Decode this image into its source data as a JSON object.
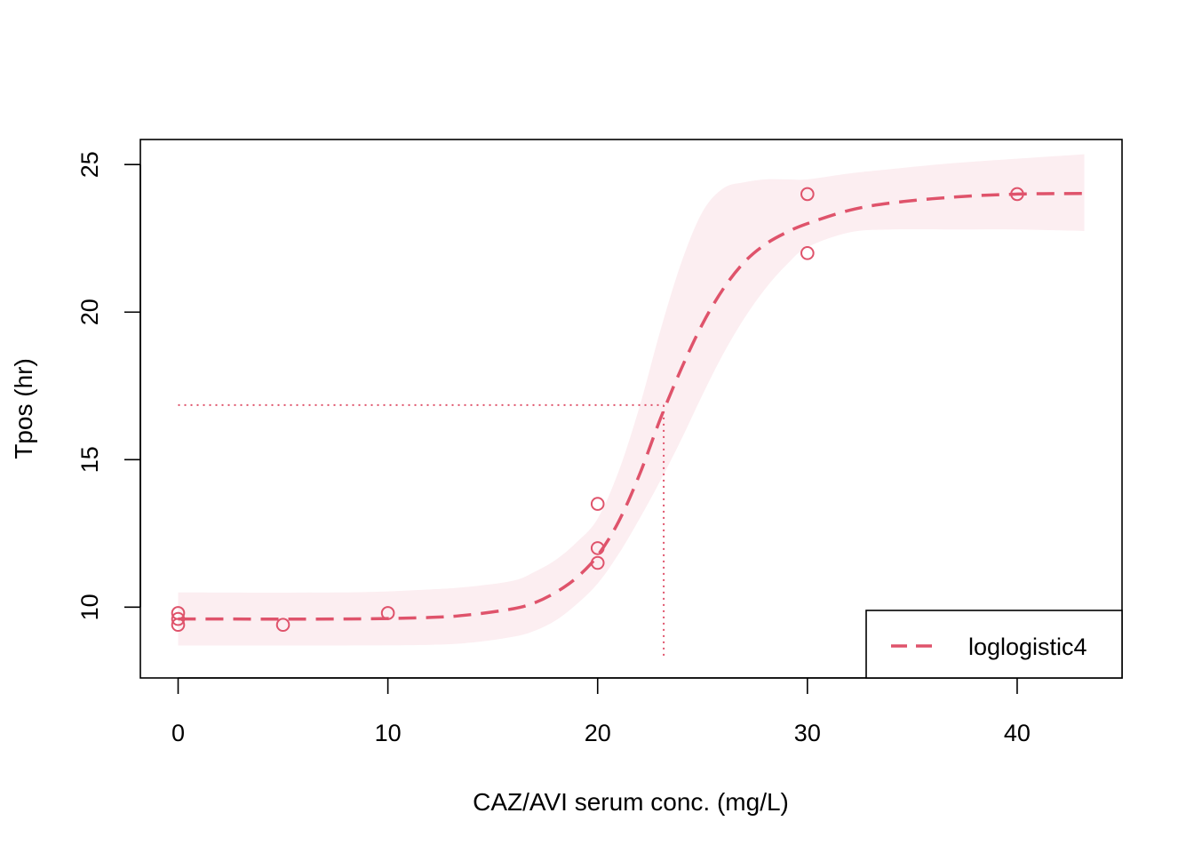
{
  "chart_data": {
    "type": "scatter",
    "xlabel": "CAZ/AVI serum conc. (mg/L)",
    "ylabel": "Tpos (hr)",
    "xlim": [
      -1.8,
      45
    ],
    "ylim": [
      7.6,
      25.85
    ],
    "x_ticks": [
      0,
      10,
      20,
      30,
      40
    ],
    "y_ticks": [
      10,
      15,
      20,
      25
    ],
    "colors": {
      "series": "#DF536B",
      "band": "#FCEEF1",
      "axis": "#000000"
    },
    "legend": {
      "position": "bottom-right",
      "entries": [
        {
          "label": "loglogistic4",
          "style": "dashed"
        }
      ]
    },
    "observations": {
      "x": [
        0,
        0,
        0,
        5,
        10,
        20,
        20,
        20,
        30,
        30,
        40
      ],
      "y": [
        9.8,
        9.6,
        9.4,
        9.4,
        9.8,
        13.5,
        12.0,
        11.5,
        24.0,
        22.0,
        24.0
      ]
    },
    "fit": {
      "name": "loglogistic4",
      "x": [
        0,
        8,
        12,
        14,
        16,
        17,
        18,
        19,
        20,
        21,
        22,
        23,
        24,
        25,
        26,
        27,
        28,
        29,
        30,
        32,
        34,
        37,
        40,
        43.2
      ],
      "y": [
        9.6,
        9.6,
        9.65,
        9.75,
        9.95,
        10.15,
        10.5,
        11.0,
        11.75,
        12.9,
        14.5,
        16.4,
        18.1,
        19.6,
        20.8,
        21.7,
        22.3,
        22.7,
        23.0,
        23.45,
        23.7,
        23.9,
        24.0,
        24.02
      ],
      "lower": [
        8.7,
        8.7,
        8.72,
        8.8,
        9.0,
        9.2,
        9.55,
        10.1,
        10.8,
        11.8,
        13.0,
        14.3,
        15.7,
        17.2,
        18.6,
        19.8,
        20.8,
        21.6,
        22.2,
        22.7,
        22.8,
        22.8,
        22.8,
        22.75
      ],
      "upper": [
        10.5,
        10.5,
        10.6,
        10.7,
        10.9,
        11.2,
        11.6,
        12.2,
        13.0,
        14.6,
        16.8,
        19.4,
        21.7,
        23.4,
        24.2,
        24.4,
        24.5,
        24.5,
        24.5,
        24.7,
        24.85,
        25.05,
        25.2,
        25.35
      ]
    },
    "reference": {
      "x": 23.15,
      "y": 16.85
    }
  }
}
